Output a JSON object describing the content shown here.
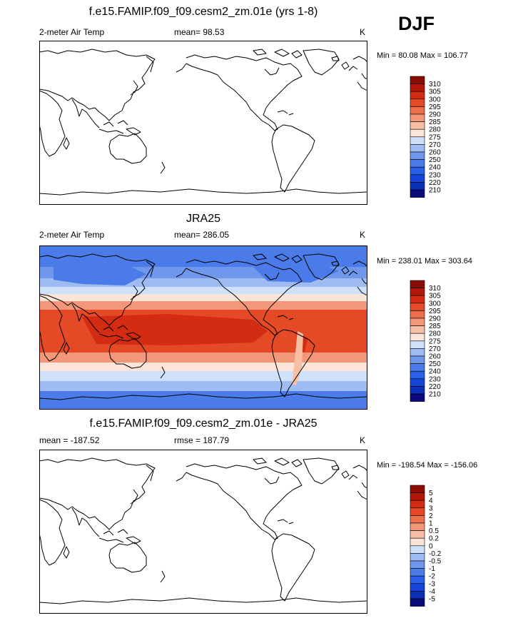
{
  "season": "DJF",
  "panels": [
    {
      "title": "f.e15.FAMIP.f09_f09.cesm2_zm.01e (yrs 1-8)",
      "left_label": "2-meter Air Temp",
      "center_label": "mean=  98.53",
      "units": "K",
      "minmax": "Min =  80.08 Max = 106.77"
    },
    {
      "title": "JRA25",
      "left_label": "2-meter Air Temp",
      "center_label": "mean= 286.05",
      "units": "K",
      "minmax": "Min = 238.01 Max = 303.64"
    },
    {
      "title": "f.e15.FAMIP.f09_f09.cesm2_zm.01e - JRA25",
      "left_label": "mean = -187.52",
      "center_label": "rmse = 187.79",
      "units": "K",
      "minmax": "Min = -198.54 Max = -156.06"
    }
  ],
  "chart_data": [
    {
      "type": "heatmap",
      "title": "f.e15.FAMIP.f09_f09.cesm2_zm.01e (yrs 1-8)",
      "variable": "2-meter Air Temp",
      "units": "K",
      "mean": 98.53,
      "min": 80.08,
      "max": 106.77,
      "fill": "below colorbar range (map rendered white)",
      "colorbar_levels": [
        210,
        220,
        230,
        240,
        250,
        260,
        270,
        275,
        280,
        285,
        290,
        295,
        300,
        305,
        310
      ]
    },
    {
      "type": "heatmap",
      "title": "JRA25",
      "variable": "2-meter Air Temp",
      "units": "K",
      "mean": 286.05,
      "min": 238.01,
      "max": 303.64,
      "colorbar_levels": [
        210,
        220,
        230,
        240,
        250,
        260,
        270,
        275,
        280,
        285,
        290,
        295,
        300,
        305,
        310
      ]
    },
    {
      "type": "heatmap",
      "title": "f.e15.FAMIP.f09_f09.cesm2_zm.01e - JRA25",
      "units": "K",
      "mean": -187.52,
      "rmse": 187.79,
      "min": -198.54,
      "max": -156.06,
      "fill": "below colorbar range (map rendered white)",
      "colorbar_levels": [
        "-5",
        "-4",
        "-3",
        "-2",
        "-1",
        "-0.5",
        "-0.2",
        "0",
        "0.2",
        "0.5",
        "1",
        "2",
        "3",
        "4",
        "5"
      ]
    }
  ],
  "colorbar_colors": [
    "#0a0a7a",
    "#0b2fb5",
    "#1544d8",
    "#2a60e8",
    "#4a7be8",
    "#6f98ec",
    "#9fbcf2",
    "#cfe0fb",
    "#fbe5d8",
    "#f7c0a5",
    "#f2977a",
    "#ec6f4c",
    "#e44a26",
    "#d42c12",
    "#b21808",
    "#8a0c05"
  ],
  "field_colors": {
    "polar": "#4a7be8",
    "cold": "#6f98ec",
    "cool": "#9fbcf2",
    "mild": "#cfe0fb",
    "temperate": "#fbe5d8",
    "warm": "#f2977a",
    "hot": "#e44a26",
    "tropic": "#d42c12",
    "andes": "#f7c0a5"
  }
}
